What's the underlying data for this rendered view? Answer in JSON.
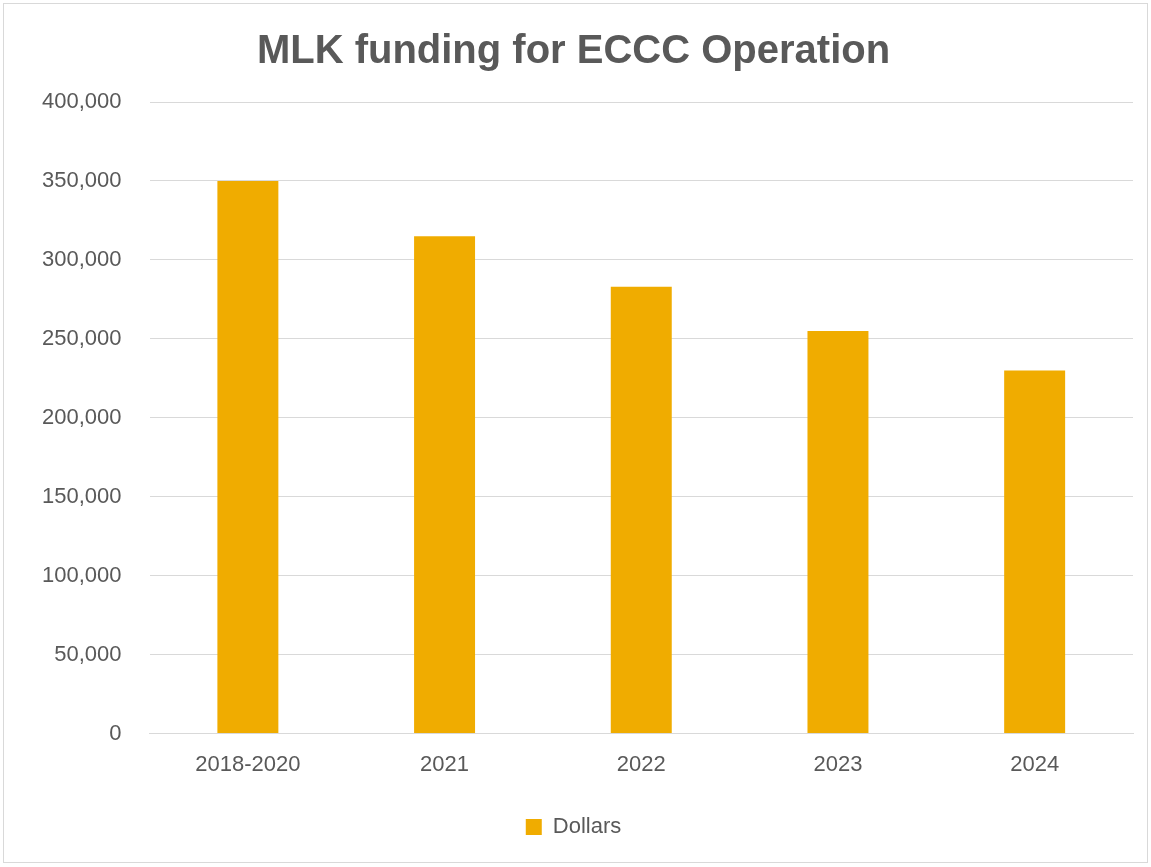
{
  "chart_data": {
    "type": "bar",
    "title": "MLK funding for ECCC Operation",
    "categories": [
      "2018-2020",
      "2021",
      "2022",
      "2023",
      "2024"
    ],
    "series": [
      {
        "name": "Dollars",
        "color": "#f0ac00",
        "values": [
          350000,
          315000,
          283000,
          255000,
          230000
        ]
      }
    ],
    "ylim": [
      0,
      400000
    ],
    "yticks": [
      {
        "value": 0,
        "label": "0"
      },
      {
        "value": 50000,
        "label": "50,000"
      },
      {
        "value": 100000,
        "label": "100,000"
      },
      {
        "value": 150000,
        "label": "150,000"
      },
      {
        "value": 200000,
        "label": "200,000"
      },
      {
        "value": 250000,
        "label": "250,000"
      },
      {
        "value": 300000,
        "label": "300,000"
      },
      {
        "value": 350000,
        "label": "350,000"
      },
      {
        "value": 400000,
        "label": "400,000"
      }
    ],
    "grid": "y",
    "legend": "bottom"
  }
}
